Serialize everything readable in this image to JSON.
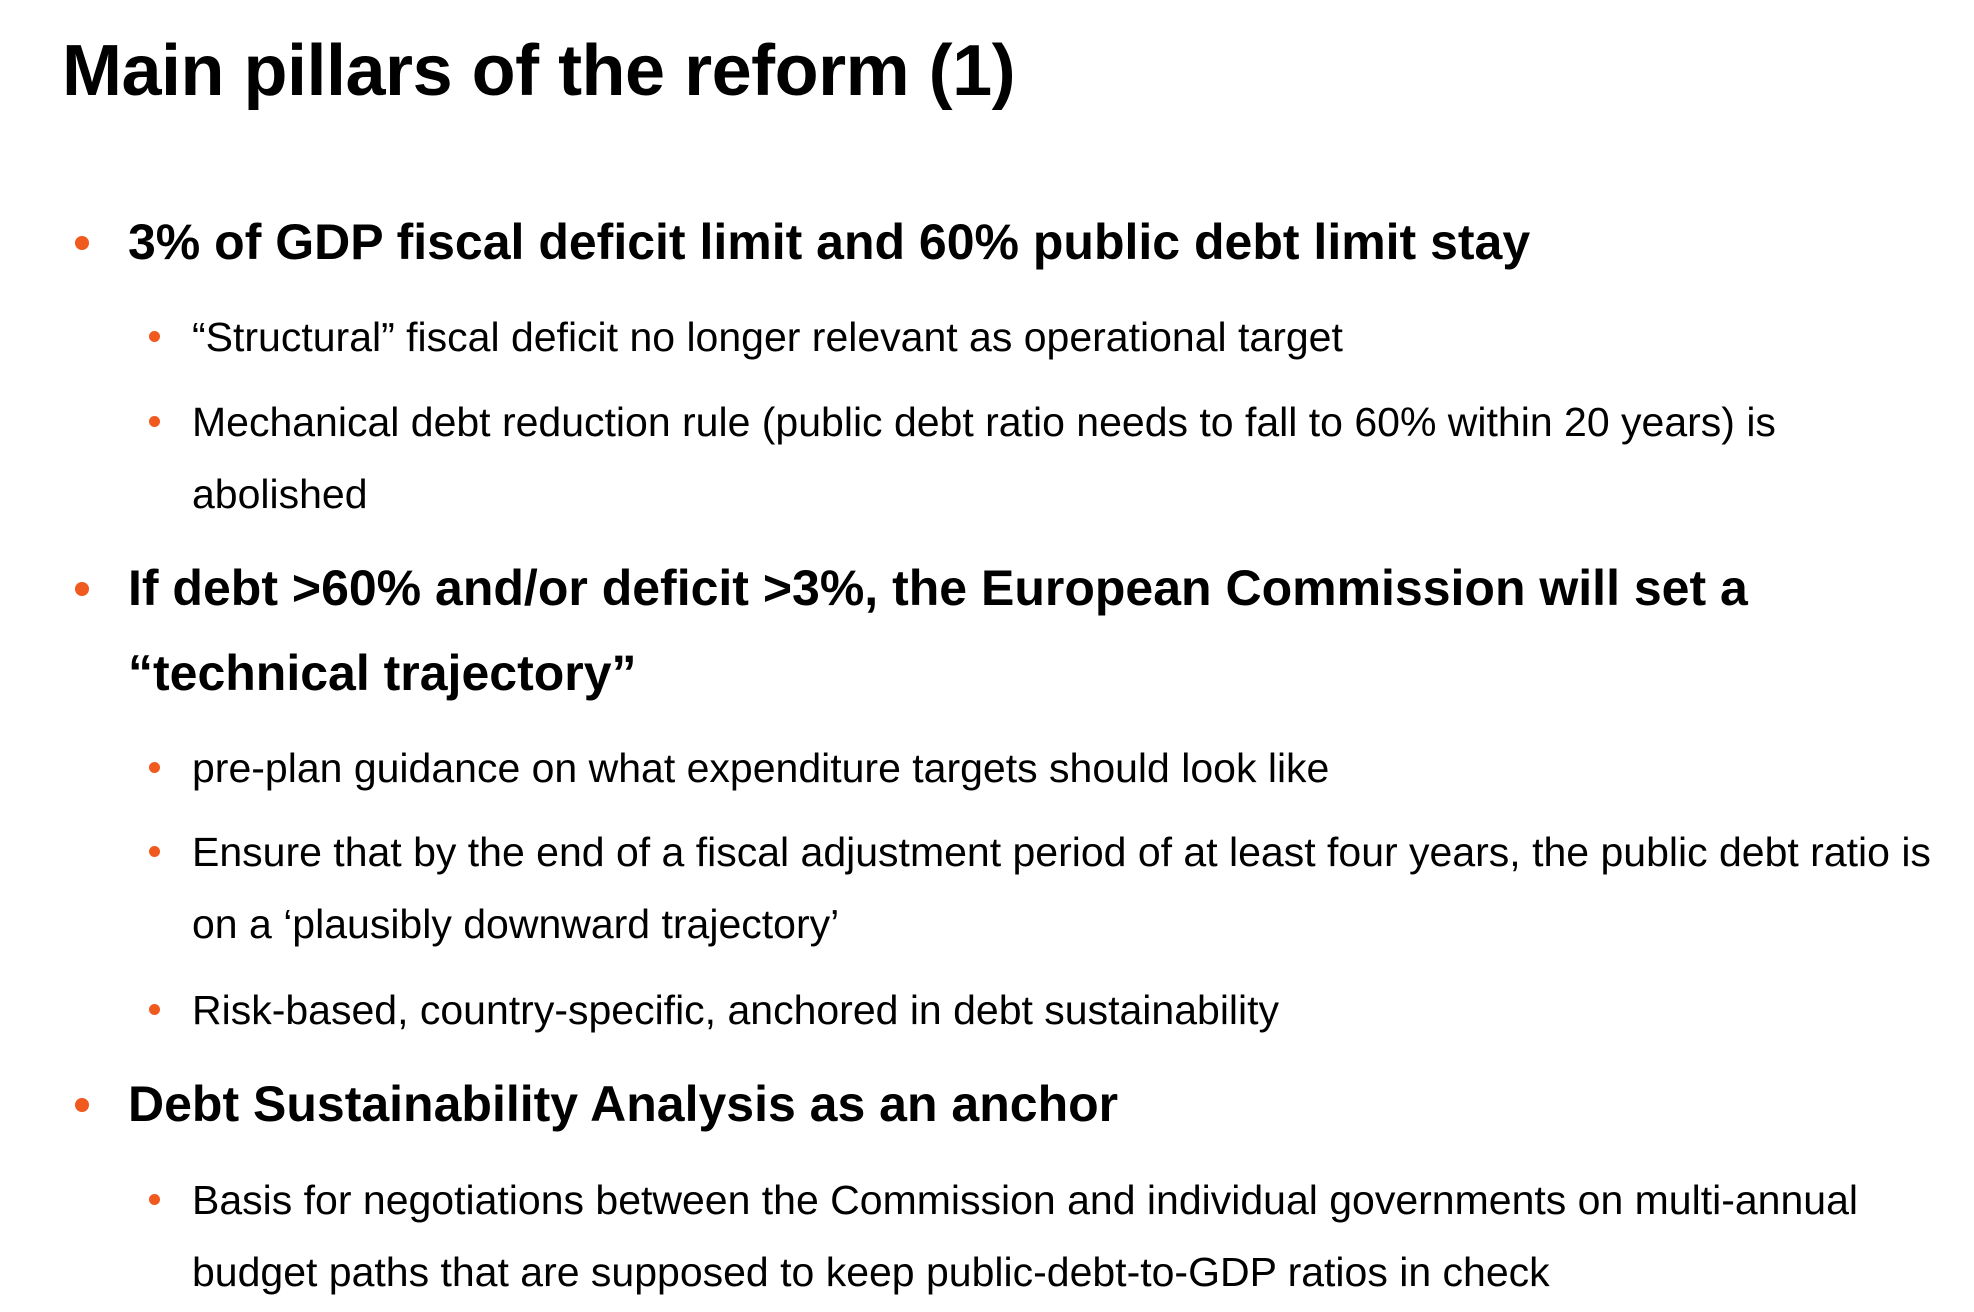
{
  "slide": {
    "title": "Main pillars of the reform (1)",
    "accent_color": "#f05a1e",
    "bullets": [
      {
        "level": 1,
        "text": "3% of GDP fiscal deficit limit and 60% public debt limit stay"
      },
      {
        "level": 2,
        "text": "“Structural” fiscal deficit no longer relevant as operational target"
      },
      {
        "level": 2,
        "text": "Mechanical debt reduction rule (public debt ratio needs to fall to 60% within 20 years) is abolished"
      },
      {
        "level": 1,
        "text": "If debt >60% and/or deficit >3%, the European Commission will set a “technical trajectory”"
      },
      {
        "level": 2,
        "text": "pre-plan guidance on what expenditure targets should look like"
      },
      {
        "level": 2,
        "text": "Ensure that by the end of a fiscal adjustment period of at least four years, the public debt ratio is on a ‘plausibly downward trajectory’"
      },
      {
        "level": 2,
        "text": "Risk-based, country-specific, anchored in debt sustainability"
      },
      {
        "level": 1,
        "text": "Debt Sustainability Analysis as an anchor"
      },
      {
        "level": 2,
        "text": "Basis for negotiations between the Commission and individual governments on multi-annual budget paths that are supposed to keep public-debt-to-GDP ratios in check"
      }
    ]
  }
}
